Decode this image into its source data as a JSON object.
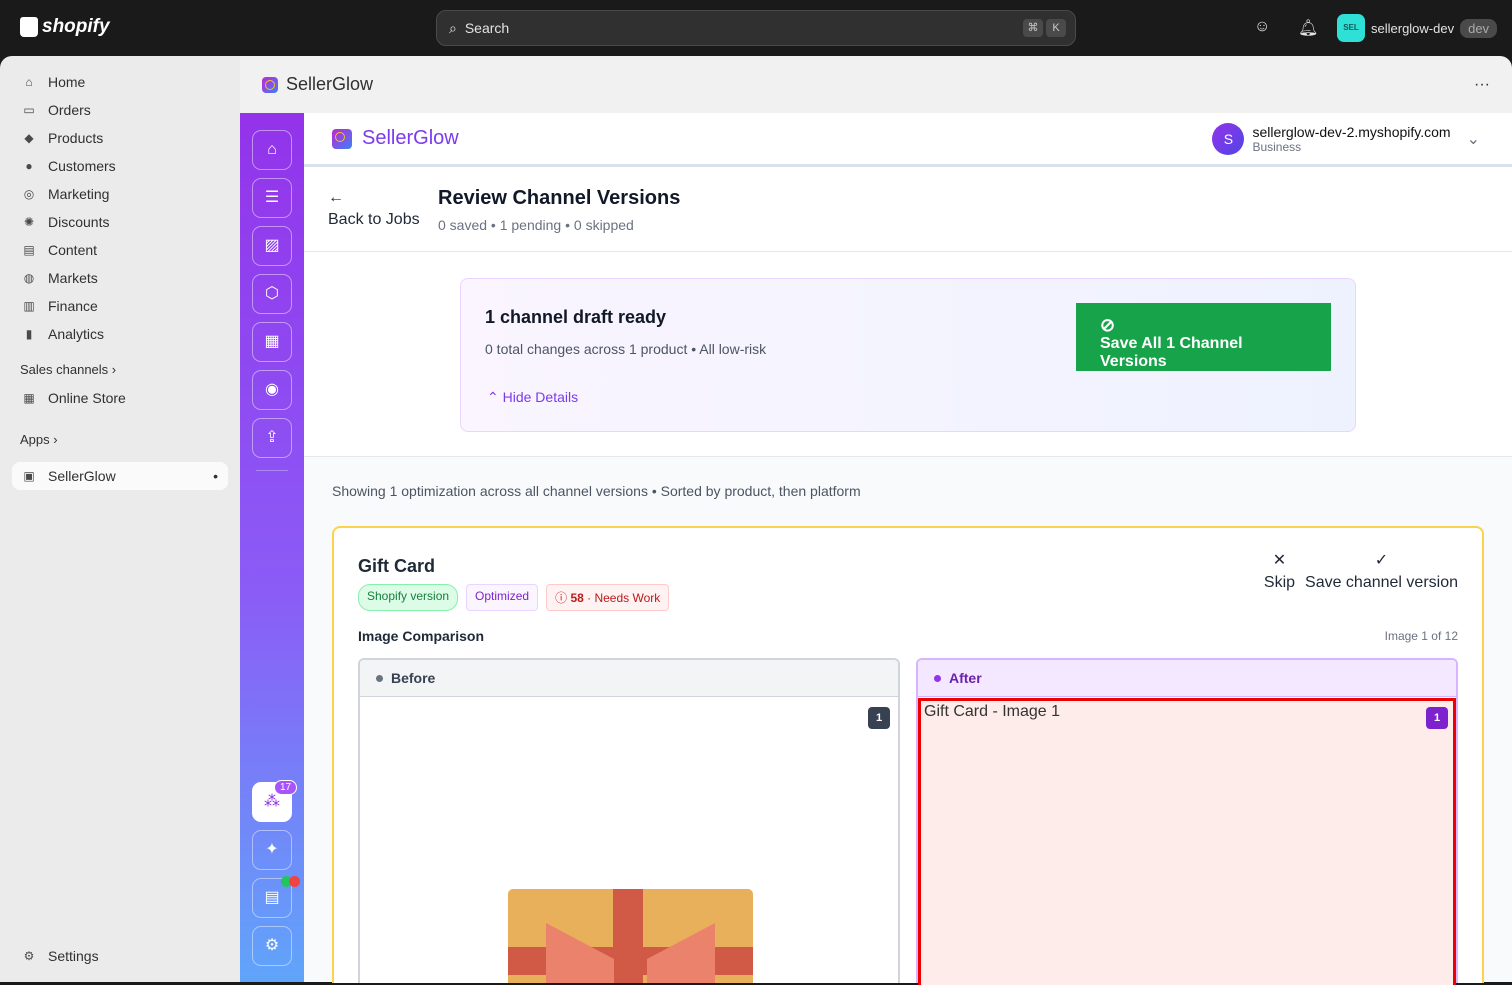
{
  "topbar": {
    "logo": "shopify",
    "search_placeholder": "Search",
    "shortcut": [
      "⌘",
      "K"
    ],
    "store_initials": "SEL",
    "store_name": "sellerglow-dev",
    "store_badge": "dev"
  },
  "nav": {
    "items": [
      {
        "label": "Home",
        "icon": "home-icon",
        "glyph": "⌂"
      },
      {
        "label": "Orders",
        "icon": "inbox-icon",
        "glyph": "▭"
      },
      {
        "label": "Products",
        "icon": "tag-icon",
        "glyph": "◆"
      },
      {
        "label": "Customers",
        "icon": "person-icon",
        "glyph": "●"
      },
      {
        "label": "Marketing",
        "icon": "target-icon",
        "glyph": "◎"
      },
      {
        "label": "Discounts",
        "icon": "discount-icon",
        "glyph": "✺"
      },
      {
        "label": "Content",
        "icon": "content-icon",
        "glyph": "▤"
      },
      {
        "label": "Markets",
        "icon": "globe-icon",
        "glyph": "◍"
      },
      {
        "label": "Finance",
        "icon": "bank-icon",
        "glyph": "▥"
      },
      {
        "label": "Analytics",
        "icon": "bar-chart-icon",
        "glyph": "▮"
      }
    ],
    "sales_channels": "Sales channels",
    "online_store": "Online Store",
    "apps": "Apps",
    "active_app": "SellerGlow",
    "settings": "Settings"
  },
  "app": {
    "title": "SellerGlow",
    "menu": "···",
    "brand": "SellerGlow",
    "account": {
      "initial": "S",
      "domain": "sellerglow-dev-2.myshopify.com",
      "plan": "Business"
    },
    "rail_badge": "17"
  },
  "page": {
    "back": "Back to Jobs",
    "title": "Review Channel Versions",
    "subtitle": "0 saved • 1 pending • 0 skipped"
  },
  "summary": {
    "title": "1 channel draft ready",
    "stats": "0 total changes across 1 product • All low-risk",
    "hide": "Hide Details",
    "save_all": "Save All 1 Channel Versions"
  },
  "list": {
    "showing": "Showing 1 optimization across all channel versions • Sorted by product, then platform"
  },
  "card": {
    "title": "Gift Card",
    "badges": {
      "shopify": "Shopify version",
      "optimized": "Optimized",
      "score": "58",
      "score_label": "· Needs Work"
    },
    "skip": "Skip",
    "save": "Save channel version",
    "comparison": "Image Comparison",
    "image_index": "Image 1 of 12",
    "before": "Before",
    "after": "After",
    "before_num": "1",
    "after_num": "1",
    "after_alt": "Gift Card - Image 1"
  },
  "colors": {
    "rail_top": "#9333ea",
    "rail_bottom": "#60a5fa",
    "save_green": "#16a34a",
    "accent": "#7c3aed"
  }
}
